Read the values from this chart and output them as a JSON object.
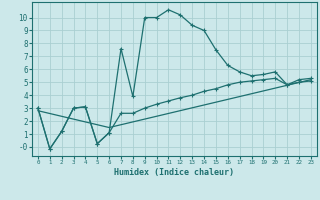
{
  "xlabel": "Humidex (Indice chaleur)",
  "bg_color": "#cce8ea",
  "grid_color": "#aacfd2",
  "line_color": "#1e7070",
  "xlim": [
    -0.5,
    23.5
  ],
  "ylim": [
    -0.7,
    11.2
  ],
  "x_ticks": [
    0,
    1,
    2,
    3,
    4,
    5,
    6,
    7,
    8,
    9,
    10,
    11,
    12,
    13,
    14,
    15,
    16,
    17,
    18,
    19,
    20,
    21,
    22,
    23
  ],
  "y_ticks": [
    0,
    1,
    2,
    3,
    4,
    5,
    6,
    7,
    8,
    9,
    10
  ],
  "line1_x": [
    0,
    1,
    2,
    3,
    4,
    5,
    6,
    7,
    8,
    9,
    10,
    11,
    12,
    13,
    14,
    15,
    16,
    17,
    18,
    19,
    20,
    21,
    22,
    23
  ],
  "line1_y": [
    3.0,
    -0.15,
    1.2,
    3.0,
    3.1,
    0.25,
    1.1,
    7.6,
    3.9,
    10.0,
    10.0,
    10.6,
    10.2,
    9.4,
    9.0,
    7.5,
    6.3,
    5.8,
    5.5,
    5.6,
    5.8,
    4.8,
    5.2,
    5.3
  ],
  "line2_x": [
    0,
    1,
    2,
    3,
    4,
    5,
    6,
    7,
    8,
    9,
    10,
    11,
    12,
    13,
    14,
    15,
    16,
    17,
    18,
    19,
    20,
    21,
    22,
    23
  ],
  "line2_y": [
    3.0,
    -0.15,
    1.2,
    3.0,
    3.1,
    0.25,
    1.1,
    2.6,
    2.6,
    3.0,
    3.3,
    3.55,
    3.8,
    4.0,
    4.3,
    4.5,
    4.8,
    5.0,
    5.1,
    5.2,
    5.3,
    4.8,
    5.0,
    5.1
  ],
  "line3_x": [
    0,
    6,
    23
  ],
  "line3_y": [
    2.8,
    1.5,
    5.2
  ]
}
